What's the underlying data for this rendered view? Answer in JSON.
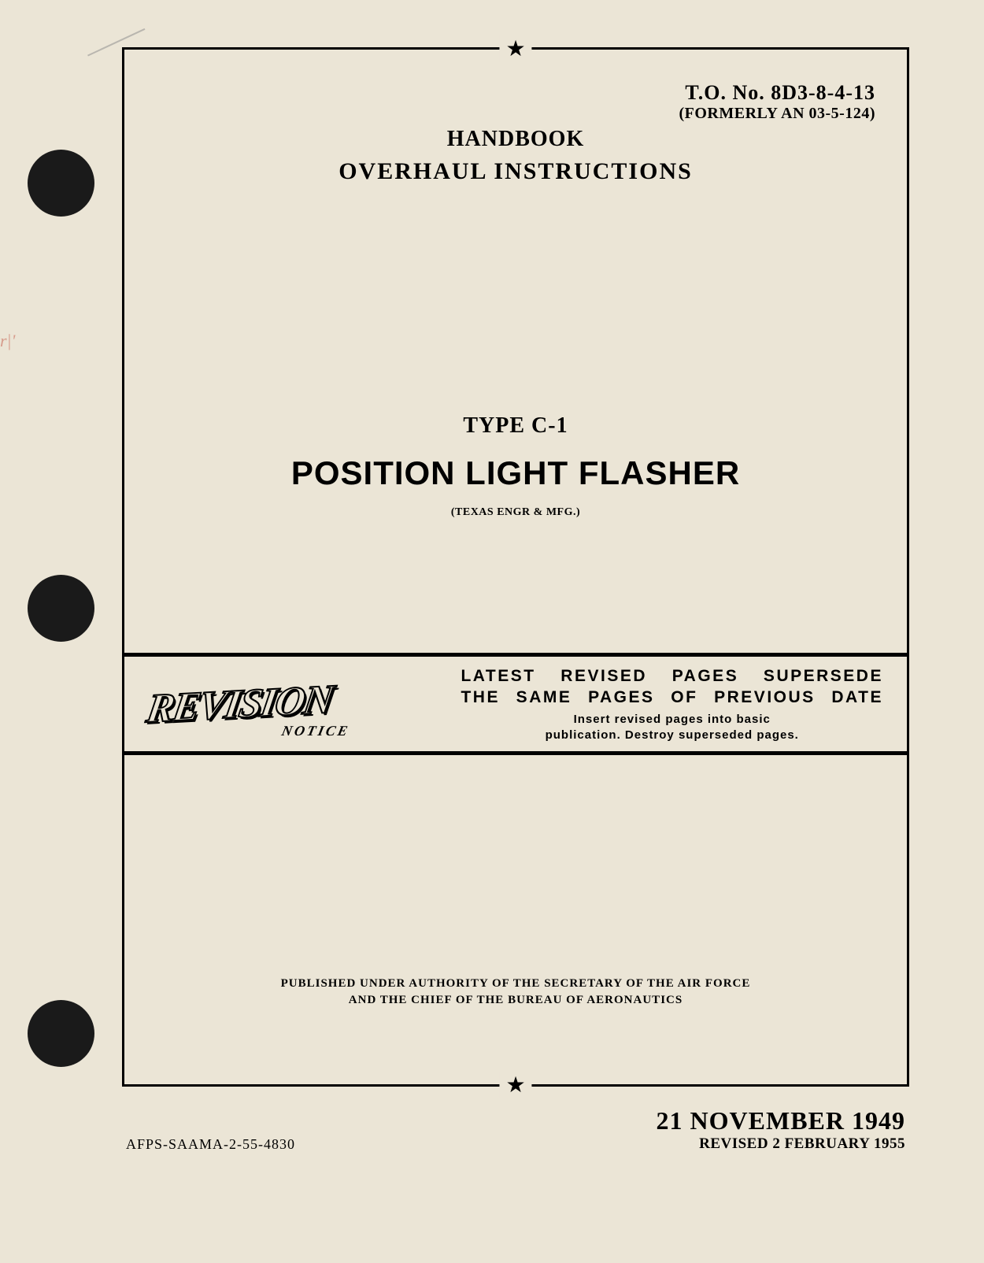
{
  "header": {
    "to_number": "T.O. No. 8D3-8-4-13",
    "formerly": "(FORMERLY AN 03-5-124)",
    "handbook": "HANDBOOK",
    "overhaul": "OVERHAUL INSTRUCTIONS"
  },
  "subject": {
    "type": "TYPE C-1",
    "title": "POSITION LIGHT FLASHER",
    "manufacturer": "(TEXAS ENGR & MFG.)"
  },
  "revision": {
    "label": "REVISION",
    "notice": "NOTICE",
    "heading_line1": "LATEST REVISED PAGES SUPERSEDE",
    "heading_line2": "THE SAME PAGES OF PREVIOUS DATE",
    "instruction_line1": "Insert revised pages into basic",
    "instruction_line2": "publication. Destroy superseded pages."
  },
  "authority": {
    "line1": "PUBLISHED UNDER AUTHORITY OF THE SECRETARY OF THE AIR FORCE",
    "line2": "AND THE CHIEF OF THE BUREAU OF AERONAUTICS"
  },
  "footer": {
    "afps": "AFPS-SAAMA-2-55-4830",
    "date": "21 NOVEMBER 1949",
    "revised": "REVISED 2 FEBRUARY 1955"
  },
  "star_glyph": "★"
}
